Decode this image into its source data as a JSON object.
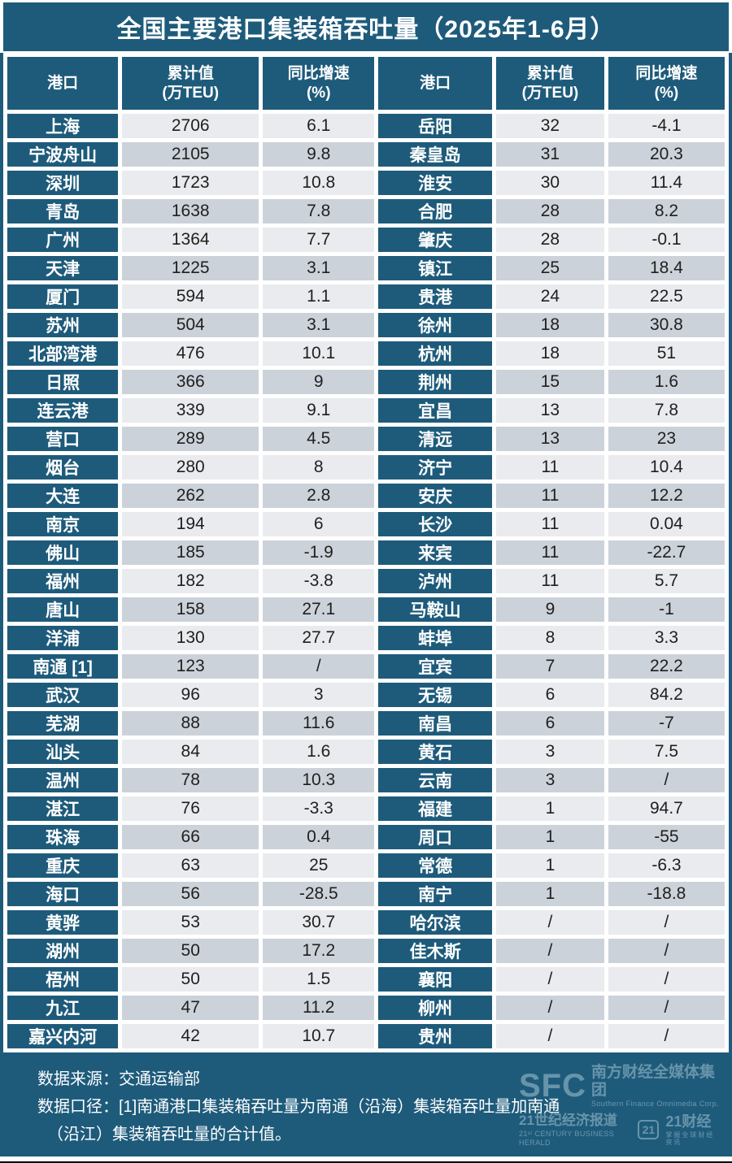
{
  "title": "全国主要港口集装箱吞吐量（2025年1-6月）",
  "colors": {
    "teal": "#1e5b7b",
    "row-light": "#e9ebee",
    "row-dark": "#ccd2d9",
    "gap": "#ffffff",
    "ink": "#1f1f1f",
    "wm": "#cfe3ec"
  },
  "headers": {
    "port": "港口",
    "value": "累计值\n(万TEU)",
    "growth": "同比增速\n(%)"
  },
  "chart_data": {
    "type": "table",
    "title": "全国主要港口集装箱吞吐量（2025年1-6月）",
    "columns": [
      "港口",
      "累计值(万TEU)",
      "同比增速(%)"
    ],
    "layout": "two column-groups side by side, 33 rows each",
    "rows": [
      [
        "上海",
        "2706",
        "6.1"
      ],
      [
        "宁波舟山",
        "2105",
        "9.8"
      ],
      [
        "深圳",
        "1723",
        "10.8"
      ],
      [
        "青岛",
        "1638",
        "7.8"
      ],
      [
        "广州",
        "1364",
        "7.7"
      ],
      [
        "天津",
        "1225",
        "3.1"
      ],
      [
        "厦门",
        "594",
        "1.1"
      ],
      [
        "苏州",
        "504",
        "3.1"
      ],
      [
        "北部湾港",
        "476",
        "10.1"
      ],
      [
        "日照",
        "366",
        "9"
      ],
      [
        "连云港",
        "339",
        "9.1"
      ],
      [
        "营口",
        "289",
        "4.5"
      ],
      [
        "烟台",
        "280",
        "8"
      ],
      [
        "大连",
        "262",
        "2.8"
      ],
      [
        "南京",
        "194",
        "6"
      ],
      [
        "佛山",
        "185",
        "-1.9"
      ],
      [
        "福州",
        "182",
        "-3.8"
      ],
      [
        "唐山",
        "158",
        "27.1"
      ],
      [
        "洋浦",
        "130",
        "27.7"
      ],
      [
        "南通 [1]",
        "123",
        "/"
      ],
      [
        "武汉",
        "96",
        "3"
      ],
      [
        "芜湖",
        "88",
        "11.6"
      ],
      [
        "汕头",
        "84",
        "1.6"
      ],
      [
        "温州",
        "78",
        "10.3"
      ],
      [
        "湛江",
        "76",
        "-3.3"
      ],
      [
        "珠海",
        "66",
        "0.4"
      ],
      [
        "重庆",
        "63",
        "25"
      ],
      [
        "海口",
        "56",
        "-28.5"
      ],
      [
        "黄骅",
        "53",
        "30.7"
      ],
      [
        "湖州",
        "50",
        "17.2"
      ],
      [
        "梧州",
        "50",
        "1.5"
      ],
      [
        "九江",
        "47",
        "11.2"
      ],
      [
        "嘉兴内河",
        "42",
        "10.7"
      ],
      [
        "岳阳",
        "32",
        "-4.1"
      ],
      [
        "秦皇岛",
        "31",
        "20.3"
      ],
      [
        "淮安",
        "30",
        "11.4"
      ],
      [
        "合肥",
        "28",
        "8.2"
      ],
      [
        "肇庆",
        "28",
        "-0.1"
      ],
      [
        "镇江",
        "25",
        "18.4"
      ],
      [
        "贵港",
        "24",
        "22.5"
      ],
      [
        "徐州",
        "18",
        "30.8"
      ],
      [
        "杭州",
        "18",
        "51"
      ],
      [
        "荆州",
        "15",
        "1.6"
      ],
      [
        "宜昌",
        "13",
        "7.8"
      ],
      [
        "清远",
        "13",
        "23"
      ],
      [
        "济宁",
        "11",
        "10.4"
      ],
      [
        "安庆",
        "11",
        "12.2"
      ],
      [
        "长沙",
        "11",
        "0.04"
      ],
      [
        "来宾",
        "11",
        "-22.7"
      ],
      [
        "泸州",
        "11",
        "5.7"
      ],
      [
        "马鞍山",
        "9",
        "-1"
      ],
      [
        "蚌埠",
        "8",
        "3.3"
      ],
      [
        "宜宾",
        "7",
        "22.2"
      ],
      [
        "无锡",
        "6",
        "84.2"
      ],
      [
        "南昌",
        "6",
        "-7"
      ],
      [
        "黄石",
        "3",
        "7.5"
      ],
      [
        "云南",
        "3",
        "/"
      ],
      [
        "福建",
        "1",
        "94.7"
      ],
      [
        "周口",
        "1",
        "-55"
      ],
      [
        "常德",
        "1",
        "-6.3"
      ],
      [
        "南宁",
        "1",
        "-18.8"
      ],
      [
        "哈尔滨",
        "/",
        "/"
      ],
      [
        "佳木斯",
        "/",
        "/"
      ],
      [
        "襄阳",
        "/",
        "/"
      ],
      [
        "柳州",
        "/",
        "/"
      ],
      [
        "贵州",
        "/",
        "/"
      ]
    ],
    "source": "交通运输部",
    "note": "[1]南通港口集装箱吞吐量为南通（沿海）集装箱吞吐量加南通（沿江）集装箱吞吐量的合计值。"
  },
  "footer": {
    "source_line": "数据来源：交通运输部",
    "note_line1": "数据口径：[1]南通港口集装箱吞吐量为南通（沿海）集装箱吞吐量加南通",
    "note_line2": "（沿江）集装箱吞吐量的合计值。"
  },
  "watermark": {
    "sfc": "SFC",
    "org_cn": "南方财经全媒体集团",
    "org_en": "Southern Finance Omnimedia Corp.",
    "herald_cn": "21世纪经济报道",
    "herald_en": "21ˢᵗ CENTURY BUSINESS HERALD",
    "logo21": "21",
    "cj_cn": "21财经",
    "cj_sub": "掌握全球财经资讯"
  }
}
